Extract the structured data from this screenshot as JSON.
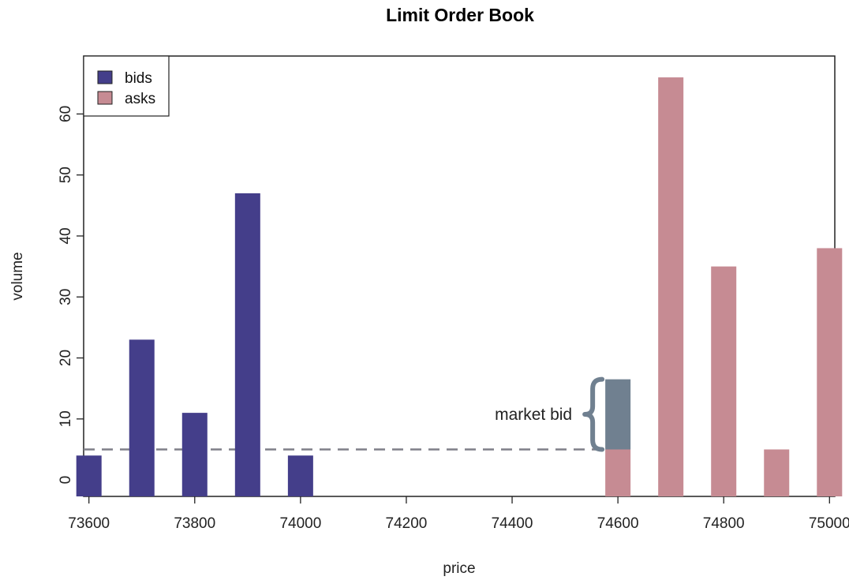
{
  "chart_data": {
    "type": "bar",
    "title": "Limit Order Book",
    "xlabel": "price",
    "ylabel": "volume",
    "xlim": [
      73590,
      75010
    ],
    "ylim": [
      -2.7,
      69.5
    ],
    "x_ticks": [
      73600,
      73800,
      74000,
      74200,
      74400,
      74600,
      74800,
      75000
    ],
    "y_ticks": [
      0,
      10,
      20,
      30,
      40,
      50,
      60
    ],
    "grid": false,
    "legend_position": "top-left",
    "colors": {
      "bids": "#443e8a",
      "asks": "#c68b93",
      "market_bid": "#708090",
      "dashed_line": "#7f7f88"
    },
    "series": [
      {
        "name": "bids",
        "points": [
          {
            "x": 73600,
            "y": 4
          },
          {
            "x": 73700,
            "y": 23
          },
          {
            "x": 73800,
            "y": 11
          },
          {
            "x": 73900,
            "y": 47
          },
          {
            "x": 74000,
            "y": 4
          }
        ]
      },
      {
        "name": "asks",
        "points": [
          {
            "x": 74600,
            "y": 5
          },
          {
            "x": 74700,
            "y": 66
          },
          {
            "x": 74800,
            "y": 35
          },
          {
            "x": 74900,
            "y": 5
          },
          {
            "x": 75000,
            "y": 38
          }
        ]
      }
    ],
    "market_bid": {
      "label": "market bid",
      "x": 74600,
      "y_from": 5,
      "y_to": 16.5
    },
    "reference_line_y": 5
  }
}
